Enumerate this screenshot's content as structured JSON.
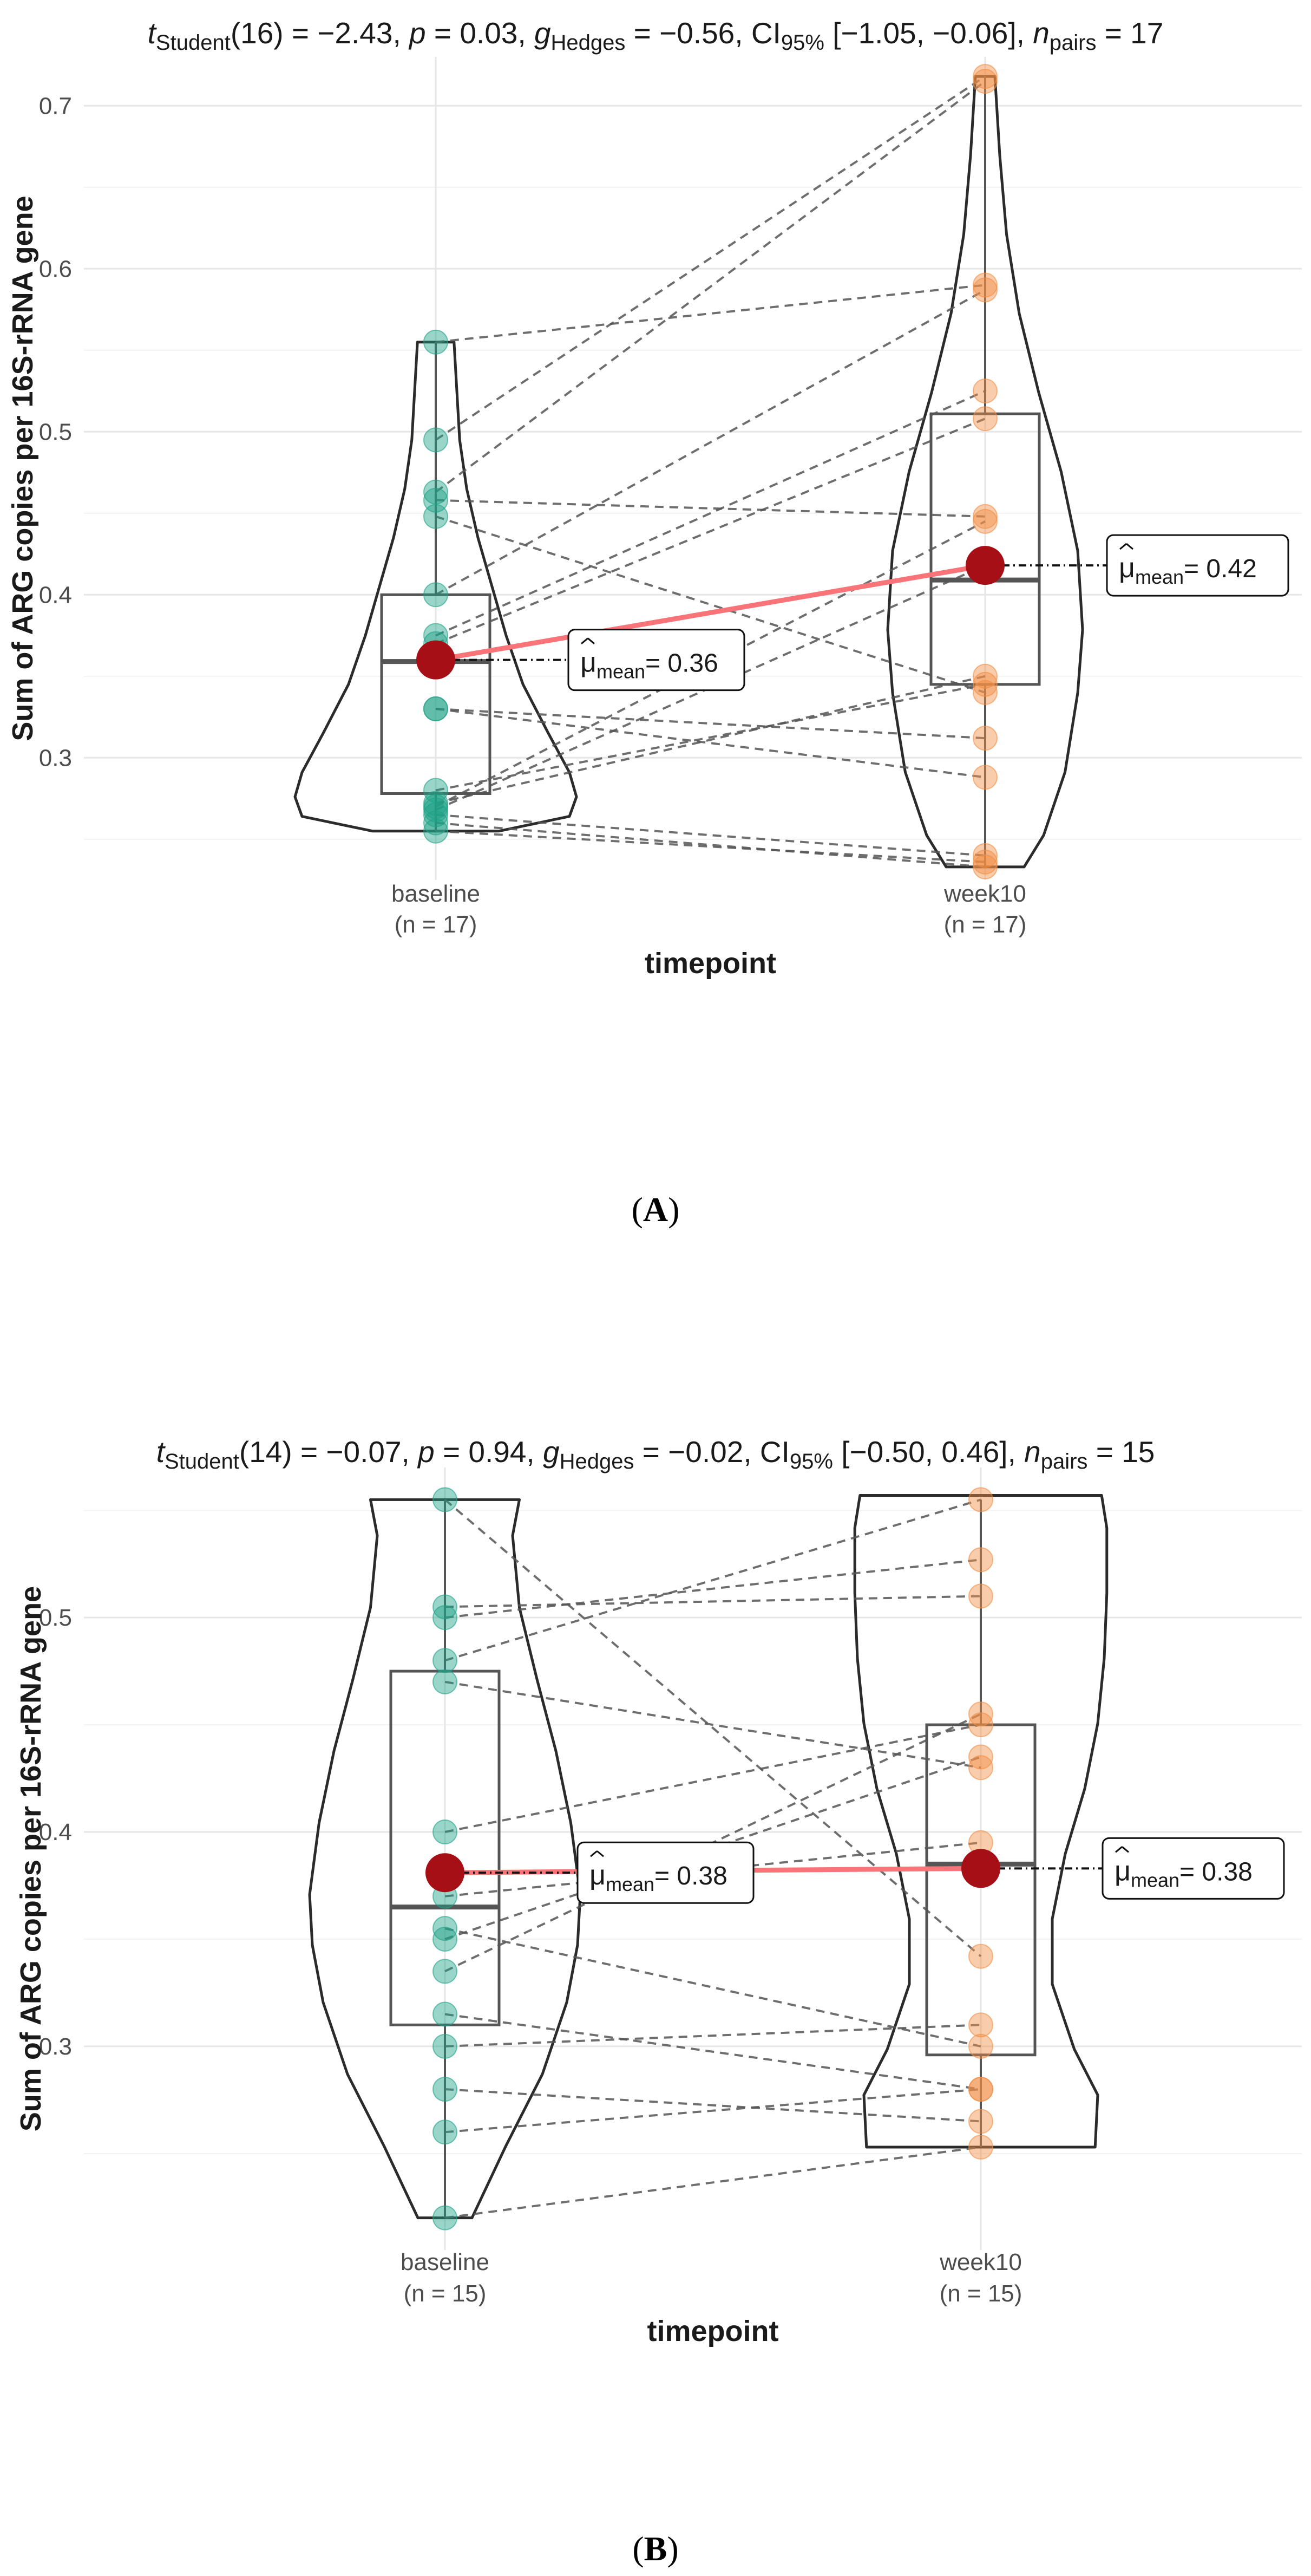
{
  "chart_data": [
    {
      "panel": "(A)",
      "type": "paired-violin-box-scatter",
      "panel_label": {
        "open": "(",
        "letter": "A",
        "close": ")"
      },
      "title_parts": {
        "t_sym": "t",
        "t_sub": "Student",
        "t_df": "(16)",
        "t_val": " = −2.43, ",
        "p_sym": "p",
        "p_val": " = 0.03, ",
        "g_sym": "g",
        "g_sub": "Hedges",
        "g_val": " = −0.56, CI",
        "ci_sub": "95%",
        "ci_val": " [−1.05, −0.06], ",
        "n_sym": "n",
        "n_sub": "pairs",
        "n_val": " = 17"
      },
      "xlabel": "timepoint",
      "ylabel": "Sum of ARG copies per 16S-rRNA gene",
      "ylim": [
        0.225,
        0.73
      ],
      "yticks": [
        0.3,
        0.4,
        0.5,
        0.6,
        0.7
      ],
      "ytick_labels": [
        "0.3",
        "0.4",
        "0.5",
        "0.6",
        "0.7"
      ],
      "categories": [
        "baseline",
        "week10"
      ],
      "category_n_labels": [
        "(n = 17)",
        "(n = 17)"
      ],
      "group_colors": [
        "#1fa187",
        "#f28e45"
      ],
      "mean_line_color": "#f87479",
      "mean_point_color": "#a50f15",
      "means": [
        0.36,
        0.418
      ],
      "mean_labels": [
        "= 0.36",
        "= 0.42"
      ],
      "mean_symbol": "μ",
      "mean_sub": "mean",
      "box_stats": [
        {
          "min": 0.255,
          "q1": 0.278,
          "median": 0.359,
          "q3": 0.4,
          "max": 0.555
        },
        {
          "min": 0.233,
          "q1": 0.345,
          "median": 0.409,
          "q3": 0.511,
          "max": 0.718
        }
      ],
      "violin_range": [
        [
          0.255,
          0.555
        ],
        [
          0.233,
          0.718
        ]
      ],
      "pairs": [
        [
          0.555,
          0.59
        ],
        [
          0.495,
          0.718
        ],
        [
          0.463,
          0.715
        ],
        [
          0.458,
          0.448
        ],
        [
          0.448,
          0.34
        ],
        [
          0.4,
          0.587
        ],
        [
          0.375,
          0.525
        ],
        [
          0.37,
          0.508
        ],
        [
          0.33,
          0.288
        ],
        [
          0.33,
          0.312
        ],
        [
          0.28,
          0.345
        ],
        [
          0.272,
          0.35
        ],
        [
          0.27,
          0.445
        ],
        [
          0.268,
          0.418
        ],
        [
          0.265,
          0.24
        ],
        [
          0.26,
          0.233
        ],
        [
          0.255,
          0.236
        ]
      ]
    },
    {
      "panel": "(B)",
      "type": "paired-violin-box-scatter",
      "panel_label": {
        "open": "(",
        "letter": "B",
        "close": ")"
      },
      "title_parts": {
        "t_sym": "t",
        "t_sub": "Student",
        "t_df": "(14)",
        "t_val": " = −0.07, ",
        "p_sym": "p",
        "p_val": " = 0.94, ",
        "g_sym": "g",
        "g_sub": "Hedges",
        "g_val": " = −0.02, CI",
        "ci_sub": "95%",
        "ci_val": " [−0.50, 0.46], ",
        "n_sym": "n",
        "n_sub": "pairs",
        "n_val": " = 15"
      },
      "xlabel": "timepoint",
      "ylabel": "Sum of ARG copies per 16S-rRNA gene",
      "ylim": [
        0.205,
        0.57
      ],
      "yticks": [
        0.3,
        0.4,
        0.5
      ],
      "ytick_labels": [
        "0.3",
        "0.4",
        "0.5"
      ],
      "categories": [
        "baseline",
        "week10"
      ],
      "category_n_labels": [
        "(n = 15)",
        "(n = 15)"
      ],
      "group_colors": [
        "#1fa187",
        "#f28e45"
      ],
      "mean_line_color": "#f87479",
      "mean_point_color": "#a50f15",
      "means": [
        0.381,
        0.383
      ],
      "mean_labels": [
        "= 0.38",
        "= 0.38"
      ],
      "mean_symbol": "μ",
      "mean_sub": "mean",
      "box_stats": [
        {
          "min": 0.22,
          "q1": 0.31,
          "median": 0.365,
          "q3": 0.475,
          "max": 0.555
        },
        {
          "min": 0.253,
          "q1": 0.296,
          "median": 0.385,
          "q3": 0.45,
          "max": 0.555
        }
      ],
      "violin_range": [
        [
          0.22,
          0.555
        ],
        [
          0.253,
          0.557
        ]
      ],
      "pairs": [
        [
          0.555,
          0.342
        ],
        [
          0.505,
          0.51
        ],
        [
          0.5,
          0.527
        ],
        [
          0.48,
          0.555
        ],
        [
          0.47,
          0.43
        ],
        [
          0.4,
          0.45
        ],
        [
          0.37,
          0.395
        ],
        [
          0.355,
          0.3
        ],
        [
          0.35,
          0.435
        ],
        [
          0.335,
          0.455
        ],
        [
          0.315,
          0.28
        ],
        [
          0.3,
          0.31
        ],
        [
          0.28,
          0.265
        ],
        [
          0.26,
          0.28
        ],
        [
          0.22,
          0.253
        ]
      ]
    }
  ]
}
